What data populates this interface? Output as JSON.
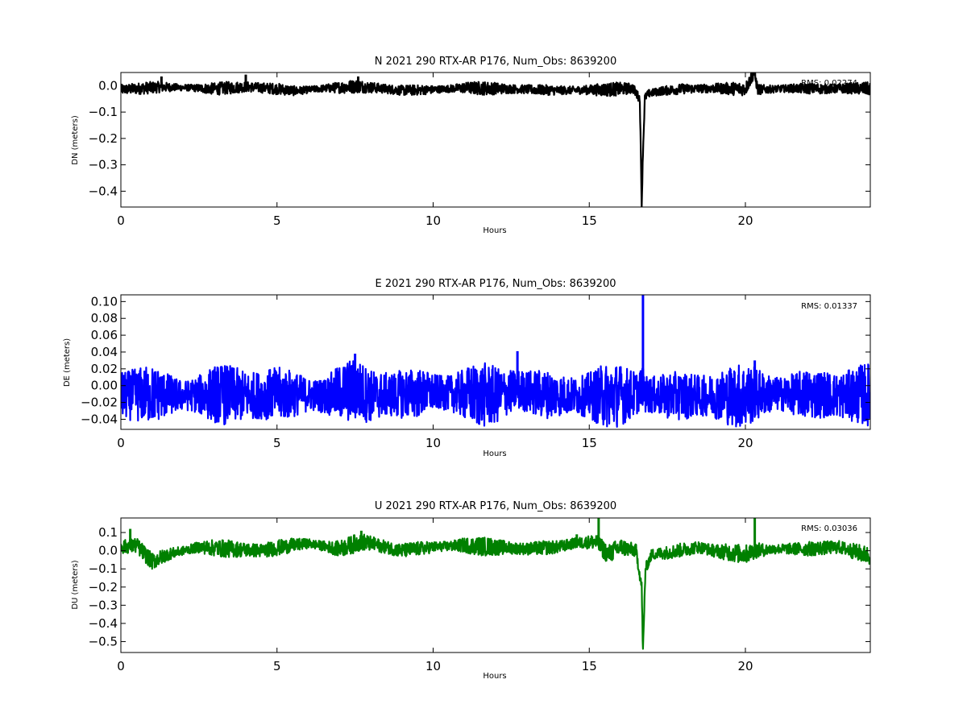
{
  "figure": {
    "background": "#ffffff",
    "plot_background": "#ffffff"
  },
  "chart_data": [
    {
      "type": "line",
      "title": "N 2021 290 RTX-AR  P176, Num_Obs: 8639200",
      "xlabel": "Hours",
      "ylabel": "DN (meters)",
      "xlim": [
        0,
        24
      ],
      "ylim": [
        -0.46,
        0.05
      ],
      "xticks": [
        0,
        5,
        10,
        15,
        20
      ],
      "yticks": [
        0.0,
        -0.1,
        -0.2,
        -0.3,
        -0.4
      ],
      "ytick_labels": [
        "0.0",
        "−0.1",
        "−0.2",
        "−0.3",
        "−0.4"
      ],
      "grid": false,
      "annotation": "RMS:  0.02274",
      "annotation_color": "#0000ff",
      "series": [
        {
          "color": "#000000",
          "baseline": -0.012,
          "band": 0.02,
          "x": [
            0.0,
            1.3,
            2.2,
            3.0,
            4.0,
            5.0,
            5.6,
            6.3,
            7.6,
            9.0,
            10.0,
            11.0,
            12.5,
            14.0,
            15.5,
            16.4,
            16.62,
            16.68,
            16.72,
            16.78,
            16.9,
            17.3,
            18.0,
            19.0,
            20.0,
            20.28,
            20.4,
            21.5,
            22.5,
            23.3,
            24.0
          ],
          "y": [
            -0.015,
            -0.005,
            -0.008,
            -0.012,
            -0.004,
            -0.012,
            -0.02,
            -0.012,
            -0.002,
            -0.018,
            -0.015,
            -0.008,
            -0.012,
            -0.018,
            -0.015,
            -0.01,
            -0.05,
            -0.46,
            -0.25,
            -0.045,
            -0.03,
            -0.02,
            -0.012,
            -0.01,
            -0.012,
            0.05,
            -0.015,
            -0.01,
            -0.012,
            -0.01,
            -0.012
          ],
          "x_peak": [
            1.3,
            4.0,
            7.6,
            20.3
          ],
          "y_peak": [
            0.035,
            0.042,
            0.035,
            0.05
          ]
        }
      ]
    },
    {
      "type": "line",
      "title": "E 2021 290 RTX-AR  P176, Num_Obs: 8639200",
      "xlabel": "Hours",
      "ylabel": "DE (meters)",
      "xlim": [
        0,
        24
      ],
      "ylim": [
        -0.052,
        0.108
      ],
      "xticks": [
        0,
        5,
        10,
        15,
        20
      ],
      "yticks": [
        0.1,
        0.08,
        0.06,
        0.04,
        0.02,
        0.0,
        -0.02,
        -0.04
      ],
      "ytick_labels": [
        "0.10",
        "0.08",
        "0.06",
        "0.04",
        "0.02",
        "0.00",
        "−0.02",
        "−0.04"
      ],
      "grid": false,
      "annotation": "RMS:  0.01337",
      "annotation_color": "#0000ff",
      "series": [
        {
          "color": "#0000ff",
          "baseline": -0.01,
          "band": 0.03,
          "x": [
            0.0,
            1.0,
            2.0,
            3.0,
            4.0,
            5.0,
            5.5,
            6.5,
            7.5,
            8.0,
            9.0,
            10.0,
            11.0,
            12.0,
            12.7,
            13.5,
            14.5,
            15.5,
            16.5,
            16.7,
            16.8,
            17.2,
            18.0,
            19.0,
            20.0,
            20.3,
            21.5,
            22.5,
            23.0,
            24.0
          ],
          "y": [
            -0.012,
            -0.01,
            -0.012,
            -0.01,
            -0.012,
            -0.01,
            -0.01,
            -0.012,
            -0.005,
            -0.012,
            -0.01,
            -0.008,
            -0.01,
            -0.012,
            -0.005,
            -0.01,
            -0.012,
            -0.012,
            -0.01,
            0.0,
            -0.01,
            -0.012,
            -0.012,
            -0.012,
            -0.012,
            -0.01,
            -0.01,
            -0.01,
            -0.012,
            -0.01
          ],
          "x_peak": [
            7.5,
            12.7,
            16.72,
            20.3
          ],
          "y_peak": [
            0.038,
            0.041,
            0.108,
            0.03
          ]
        }
      ]
    },
    {
      "type": "line",
      "title": "U 2021 290 RTX-AR  P176, Num_Obs: 8639200",
      "xlabel": "Hours",
      "ylabel": "DU (meters)",
      "xlim": [
        0,
        24
      ],
      "ylim": [
        -0.56,
        0.18
      ],
      "xticks": [
        0,
        5,
        10,
        15,
        20
      ],
      "yticks": [
        0.1,
        0.0,
        -0.1,
        -0.2,
        -0.3,
        -0.4,
        -0.5
      ],
      "ytick_labels": [
        "0.1",
        "0.0",
        "−0.1",
        "−0.2",
        "−0.3",
        "−0.4",
        "−0.5"
      ],
      "grid": false,
      "annotation": "RMS:  0.03036",
      "annotation_color": "#0000ff",
      "series": [
        {
          "color": "#008000",
          "baseline": 0.0,
          "band": 0.04,
          "x": [
            0.0,
            0.5,
            1.0,
            1.5,
            2.5,
            3.5,
            4.5,
            5.5,
            6.0,
            7.0,
            7.7,
            9.0,
            10.0,
            11.0,
            12.0,
            13.0,
            14.0,
            14.5,
            15.2,
            15.6,
            16.0,
            16.5,
            16.68,
            16.72,
            16.8,
            17.0,
            17.5,
            18.5,
            19.0,
            20.0,
            20.3,
            21.0,
            22.0,
            23.0,
            24.0
          ],
          "y": [
            0.02,
            0.03,
            -0.06,
            -0.02,
            0.02,
            0.01,
            0.0,
            0.03,
            0.04,
            0.01,
            0.05,
            0.0,
            0.02,
            0.03,
            0.02,
            0.01,
            0.02,
            0.04,
            0.05,
            -0.02,
            0.02,
            0.0,
            -0.2,
            -0.56,
            -0.1,
            -0.02,
            -0.01,
            0.02,
            0.0,
            -0.02,
            0.0,
            0.01,
            0.01,
            0.02,
            -0.03
          ],
          "x_peak": [
            0.3,
            7.7,
            14.6,
            15.3,
            20.3
          ],
          "y_peak": [
            0.12,
            0.11,
            0.09,
            0.18,
            0.18
          ]
        }
      ]
    }
  ]
}
